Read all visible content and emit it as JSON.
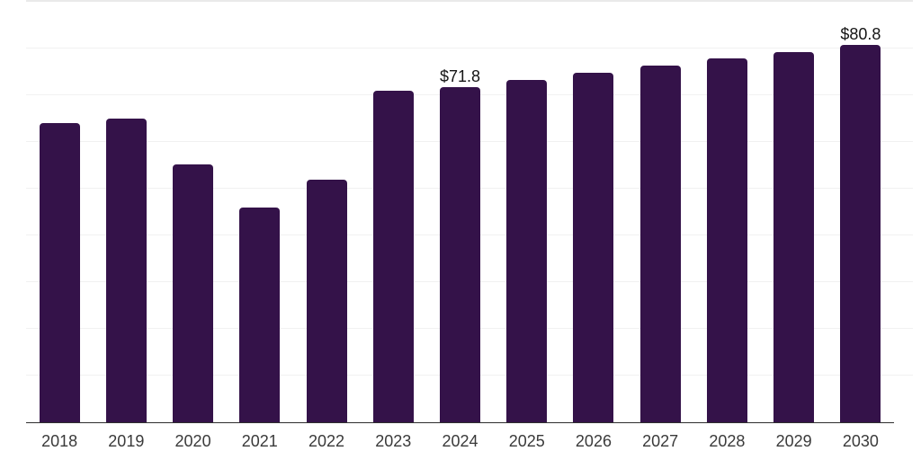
{
  "chart_data": {
    "type": "bar",
    "title": "",
    "xlabel": "",
    "ylabel": "",
    "categories": [
      "2018",
      "2019",
      "2020",
      "2021",
      "2022",
      "2023",
      "2024",
      "2025",
      "2026",
      "2027",
      "2028",
      "2029",
      "2030"
    ],
    "values": [
      64.0,
      65.0,
      55.2,
      45.9,
      52.0,
      70.9,
      71.8,
      73.3,
      74.9,
      76.3,
      77.8,
      79.2,
      80.8
    ],
    "annotations": [
      {
        "category": "2024",
        "label": "$71.8"
      },
      {
        "category": "2030",
        "label": "$80.8"
      }
    ],
    "value_prefix": "$",
    "ylim": [
      0,
      90
    ],
    "gridline_step": 10,
    "grid": "horizontal-only",
    "y_axis_labels_visible": false,
    "legend": "none",
    "colors": {
      "bar": "#341249",
      "gridline": "#f1f1f1",
      "gridline_top": "#e9e9e9",
      "axis_line": "#2f2f2f",
      "tick_label": "#3a3a3a",
      "value_label": "#151515",
      "background": "#ffffff"
    }
  }
}
